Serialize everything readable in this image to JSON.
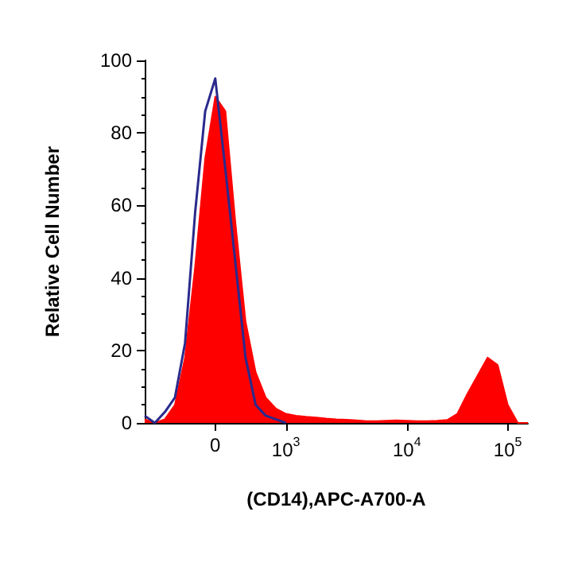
{
  "chart_data": {
    "type": "area",
    "xlabel": "(CD14),APC-A700-A",
    "ylabel": "Relative Cell Number",
    "categories": [
      null,
      null,
      null,
      null,
      null,
      null,
      null,
      "0",
      null,
      null,
      null,
      null,
      null,
      null,
      "10$^{3}$",
      null,
      null,
      null,
      null,
      null,
      null,
      null,
      null,
      null,
      null,
      null,
      "10$^{4}$",
      null,
      null,
      null,
      null,
      null,
      null,
      null,
      null,
      null,
      "10$^{5}$",
      null,
      null
    ],
    "ylim": [
      0,
      100
    ],
    "yticks": [
      0,
      20,
      40,
      60,
      80,
      100
    ],
    "marker": "none",
    "series": [
      {
        "color": "#ff0000",
        "values": [
          1,
          0,
          1,
          5,
          18,
          43,
          73,
          90,
          86,
          55,
          28,
          14,
          7,
          4,
          2.5,
          2,
          1.7,
          1.5,
          1.2,
          1,
          0.9,
          0.7,
          0.5,
          0.5,
          0.6,
          0.7,
          0.6,
          0.5,
          0.5,
          0.6,
          0.8,
          2.5,
          8,
          13,
          18,
          16,
          5,
          0,
          0
        ]
      },
      {
        "type": "line",
        "color": "#2a2a8c",
        "line_style": "solid",
        "values": [
          2,
          0,
          3,
          7,
          22,
          58,
          86,
          95,
          70,
          44,
          18,
          5,
          2,
          1,
          0,
          null,
          null,
          null,
          null,
          null,
          null,
          null,
          null,
          null,
          null,
          null,
          null,
          null,
          null,
          null,
          null,
          null,
          null,
          null,
          null,
          null,
          null,
          null,
          null
        ]
      }
    ]
  }
}
